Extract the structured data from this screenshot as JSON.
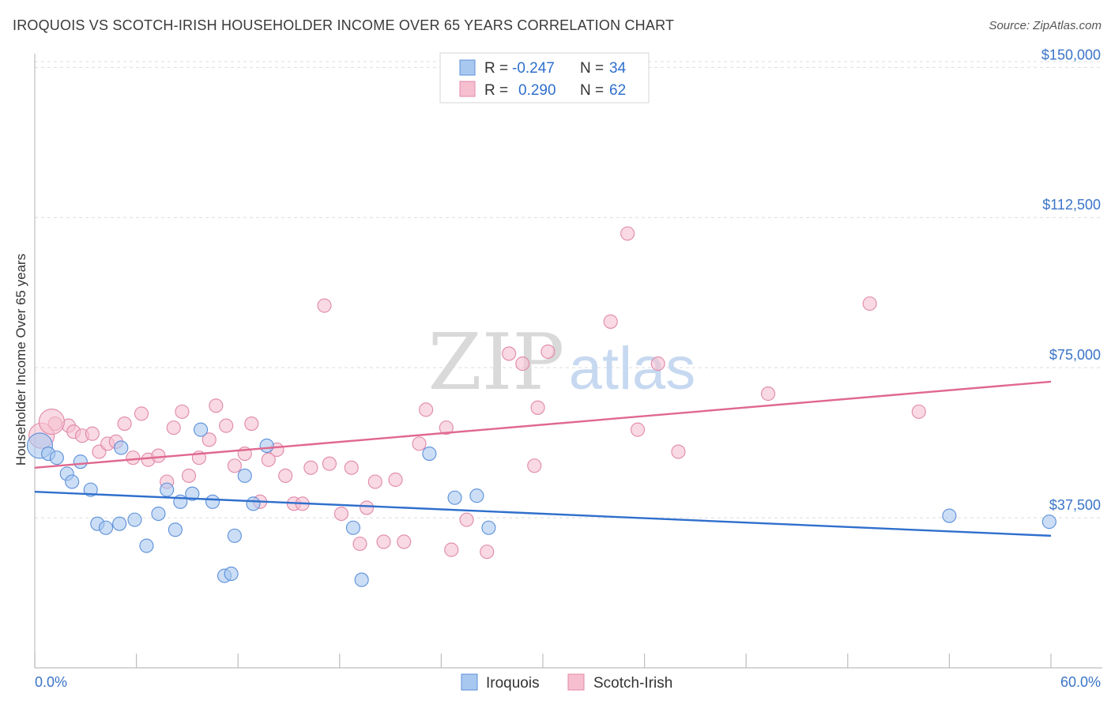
{
  "header": {
    "title": "IROQUOIS VS SCOTCH-IRISH HOUSEHOLDER INCOME OVER 65 YEARS CORRELATION CHART",
    "source": "Source: ZipAtlas.com"
  },
  "watermark": {
    "part1": "ZIP",
    "part2": "atlas"
  },
  "legend_box": {
    "rows": [
      {
        "r_label": "R =",
        "r_value": "-0.247",
        "n_label": "N =",
        "n_value": "34"
      },
      {
        "r_label": "R =",
        "r_value": "0.290",
        "n_label": "N =",
        "n_value": "62"
      }
    ]
  },
  "chart_data": {
    "type": "scatter",
    "xlabel": "",
    "ylabel": "Householder Income Over 65 years",
    "xlim": [
      0,
      60
    ],
    "ylim": [
      0,
      155000
    ],
    "x_tick_labels": [
      "0.0%",
      "60.0%"
    ],
    "y_ticks": [
      37500,
      75000,
      112500,
      150000
    ],
    "y_tick_labels": [
      "$37,500",
      "$75,000",
      "$112,500",
      "$150,000"
    ],
    "grid": true,
    "legend_position": "bottom-center",
    "colors": {
      "iroquois_fill": "#a9c8f0",
      "iroquois_stroke": "#5b8fd9",
      "iroquois_line": "#2f6fcc",
      "scotch_fill": "#f5bfd0",
      "scotch_stroke": "#e088a8",
      "scotch_line": "#e0688e",
      "tick_label": "#3a74c8"
    },
    "series": [
      {
        "name": "Iroquois",
        "trend": [
          [
            0,
            44000
          ],
          [
            60,
            33000
          ]
        ],
        "points": [
          [
            0.3,
            55500
          ],
          [
            0.8,
            53500
          ],
          [
            1.3,
            52500
          ],
          [
            1.9,
            48500
          ],
          [
            2.2,
            46500
          ],
          [
            2.7,
            51500
          ],
          [
            3.3,
            44500
          ],
          [
            3.7,
            36000
          ],
          [
            4.2,
            35000
          ],
          [
            5.0,
            36000
          ],
          [
            5.1,
            55000
          ],
          [
            5.9,
            37000
          ],
          [
            6.6,
            30500
          ],
          [
            7.3,
            38500
          ],
          [
            7.8,
            44500
          ],
          [
            8.3,
            34500
          ],
          [
            8.6,
            41500
          ],
          [
            9.3,
            43500
          ],
          [
            9.8,
            59500
          ],
          [
            10.5,
            41500
          ],
          [
            11.2,
            23000
          ],
          [
            11.6,
            23500
          ],
          [
            11.8,
            33000
          ],
          [
            12.4,
            48000
          ],
          [
            12.9,
            41000
          ],
          [
            13.7,
            55500
          ],
          [
            18.8,
            35000
          ],
          [
            19.3,
            22000
          ],
          [
            23.3,
            53500
          ],
          [
            24.8,
            42500
          ],
          [
            26.1,
            43000
          ],
          [
            26.8,
            35000
          ],
          [
            54.0,
            38000
          ],
          [
            59.9,
            36500
          ]
        ]
      },
      {
        "name": "Scotch-Irish",
        "trend": [
          [
            0,
            50000
          ],
          [
            60,
            71500
          ]
        ],
        "points": [
          [
            0.4,
            58000
          ],
          [
            1.2,
            61000
          ],
          [
            2.0,
            60500
          ],
          [
            2.3,
            59000
          ],
          [
            2.8,
            58000
          ],
          [
            3.4,
            58500
          ],
          [
            3.8,
            54000
          ],
          [
            4.3,
            56000
          ],
          [
            4.8,
            56500
          ],
          [
            5.3,
            61000
          ],
          [
            5.8,
            52500
          ],
          [
            6.3,
            63500
          ],
          [
            6.7,
            52000
          ],
          [
            7.3,
            53000
          ],
          [
            7.8,
            46500
          ],
          [
            8.2,
            60000
          ],
          [
            8.7,
            64000
          ],
          [
            9.1,
            48000
          ],
          [
            9.7,
            52500
          ],
          [
            10.3,
            57000
          ],
          [
            10.7,
            65500
          ],
          [
            11.3,
            60500
          ],
          [
            11.8,
            50500
          ],
          [
            12.4,
            53500
          ],
          [
            12.8,
            61000
          ],
          [
            13.3,
            41500
          ],
          [
            13.8,
            52000
          ],
          [
            14.3,
            54500
          ],
          [
            14.8,
            48000
          ],
          [
            15.3,
            41000
          ],
          [
            15.8,
            41000
          ],
          [
            16.3,
            50000
          ],
          [
            17.1,
            90500
          ],
          [
            17.4,
            51000
          ],
          [
            18.1,
            38500
          ],
          [
            18.7,
            50000
          ],
          [
            19.2,
            31000
          ],
          [
            19.6,
            40000
          ],
          [
            20.1,
            46500
          ],
          [
            20.6,
            31500
          ],
          [
            21.3,
            47000
          ],
          [
            21.8,
            31500
          ],
          [
            22.7,
            56000
          ],
          [
            23.1,
            64500
          ],
          [
            24.3,
            60000
          ],
          [
            24.6,
            29500
          ],
          [
            25.5,
            37000
          ],
          [
            26.7,
            29000
          ],
          [
            28.0,
            78500
          ],
          [
            28.8,
            76000
          ],
          [
            29.5,
            50500
          ],
          [
            29.7,
            65000
          ],
          [
            30.3,
            79000
          ],
          [
            34.0,
            86500
          ],
          [
            35.0,
            108500
          ],
          [
            35.6,
            59500
          ],
          [
            36.8,
            76000
          ],
          [
            38.0,
            54000
          ],
          [
            43.3,
            68500
          ],
          [
            49.3,
            91000
          ],
          [
            52.2,
            64000
          ],
          [
            1.0,
            61500
          ]
        ]
      }
    ]
  }
}
